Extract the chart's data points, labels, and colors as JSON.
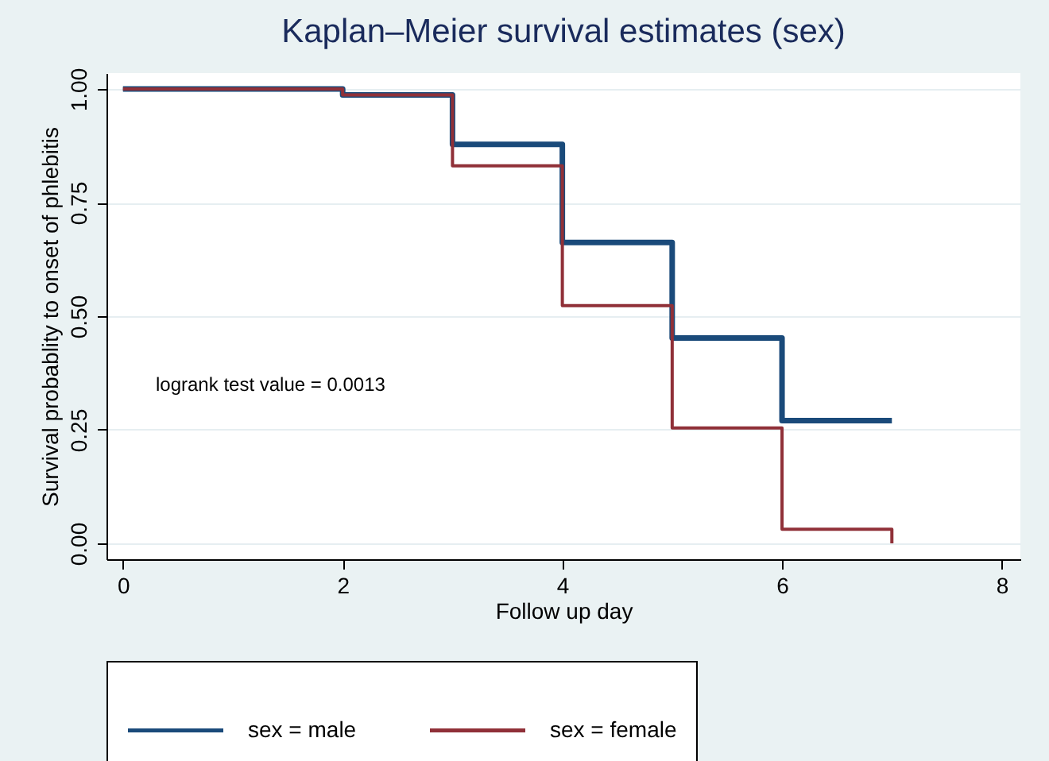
{
  "chart_data": {
    "type": "step",
    "title": "Kaplan–Meier survival estimates (sex)",
    "xlabel": "Follow up day",
    "ylabel": "Survival probablity to onset of phlebitis",
    "annotations": [
      "logrank test value = 0.0013"
    ],
    "series": [
      {
        "name": "sex = male",
        "color": "#1a4a7a",
        "x": [
          0,
          2,
          3,
          4,
          5,
          6,
          7
        ],
        "values": [
          1,
          0.987,
          0.878,
          0.662,
          0.452,
          0.27,
          0.27
        ]
      },
      {
        "name": "sex = female",
        "color": "#903038",
        "x": [
          0,
          2,
          3,
          4,
          5,
          6,
          7
        ],
        "values": [
          1,
          0.987,
          0.831,
          0.523,
          0.254,
          0.031,
          0
        ]
      }
    ],
    "xlim": [
      -0.15,
      8.17
    ],
    "xticks": [
      0,
      2,
      4,
      6,
      8
    ],
    "ylim": [
      -0.035,
      1.035
    ],
    "yticks": [
      {
        "value": 0,
        "label": "0.00"
      },
      {
        "value": 0.25,
        "label": "0.25"
      },
      {
        "value": 0.5,
        "label": "0.50"
      },
      {
        "value": 0.75,
        "label": "0.75"
      },
      {
        "value": 1,
        "label": "1.00"
      }
    ],
    "grid": "y",
    "legend": "bottom",
    "line_style": "solid"
  }
}
